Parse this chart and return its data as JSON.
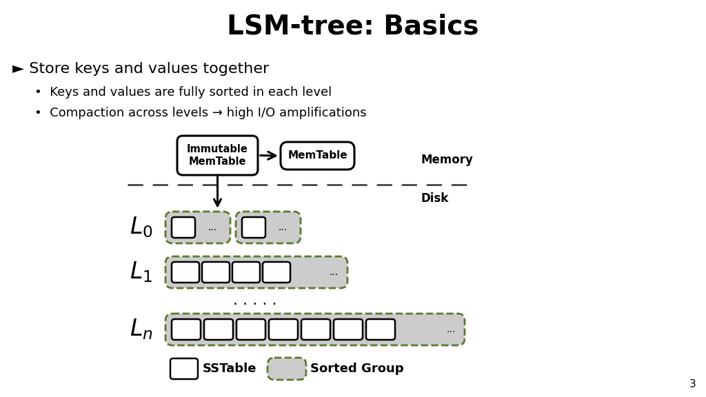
{
  "title": "LSM-tree: Basics",
  "bg_color": "#ffffff",
  "bullet1": "► Store keys and values together",
  "sub1": "Keys and values are fully sorted in each level",
  "sub2": "Compaction across levels → high I/O amplifications",
  "box_immutable": "Immutable\nMemTable",
  "box_memtable": "MemTable",
  "label_memory": "Memory",
  "label_disk": "Disk",
  "label_L0": "$L_0$",
  "label_L1": "$L_1$",
  "label_Ln": "$L_n$",
  "label_dots": ". . . . .",
  "legend_sstable": "SSTable",
  "legend_sorted": "Sorted Group",
  "page_num": "3",
  "dashed_color": "#444444",
  "box_color": "#ffffff",
  "box_edge_color": "#000000",
  "sorted_group_fill": "#cccccc",
  "sorted_group_edge": "#5a7a2a",
  "arrow_color": "#000000"
}
